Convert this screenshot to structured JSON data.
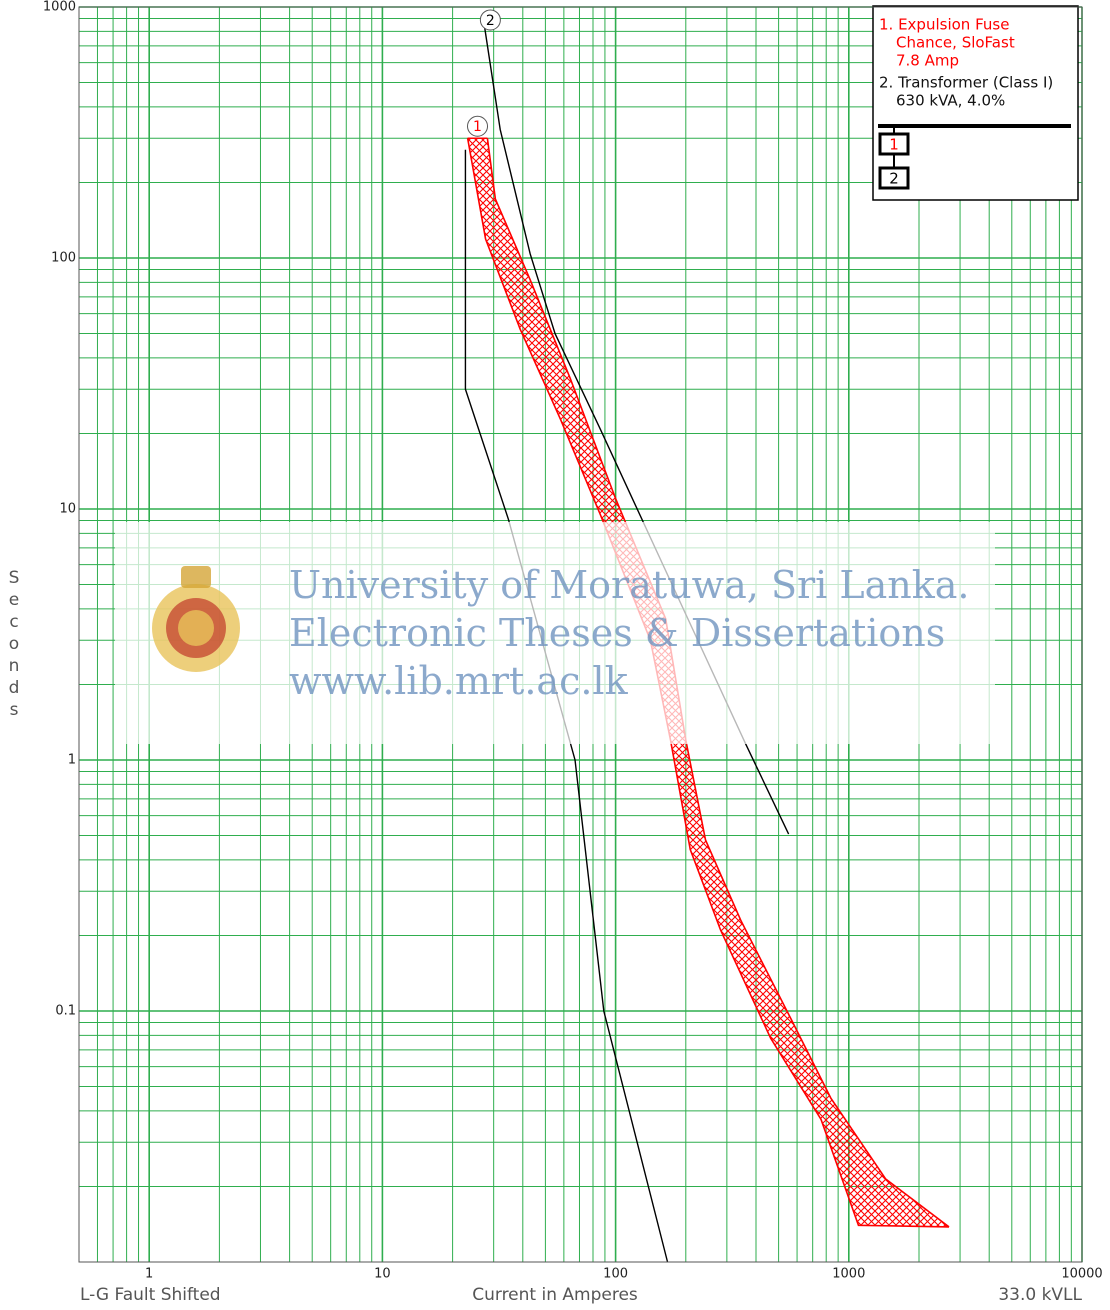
{
  "chart_data": {
    "type": "line",
    "xlabel": "Current in Amperes",
    "ylabel": "Seconds",
    "x_note_left": "L-G Fault Shifted",
    "x_note_right": "33.0 kVLL",
    "xscale": "log",
    "yscale": "log",
    "xlim": [
      0.5,
      10000
    ],
    "ylim": [
      0.01,
      1000
    ],
    "xticks": [
      1,
      10,
      100,
      1000,
      10000
    ],
    "yticks": [
      0.1,
      1,
      10,
      100,
      1000
    ],
    "xminorticks": [
      0.6,
      0.7,
      0.8,
      0.9,
      2,
      3,
      4,
      5,
      6,
      7,
      8,
      9,
      20,
      30,
      40,
      50,
      60,
      70,
      80,
      90,
      200,
      300,
      400,
      500,
      600,
      700,
      800,
      900,
      2000,
      3000,
      4000,
      5000,
      6000,
      7000,
      8000,
      9000
    ],
    "yminorticks": [
      0.02,
      0.03,
      0.04,
      0.05,
      0.06,
      0.07,
      0.08,
      0.09,
      0.2,
      0.3,
      0.4,
      0.5,
      0.6,
      0.7,
      0.8,
      0.9,
      2,
      3,
      4,
      5,
      6,
      7,
      8,
      9,
      20,
      30,
      40,
      50,
      60,
      70,
      80,
      90,
      200,
      300,
      400,
      500,
      600,
      700,
      800,
      900
    ],
    "grid": true,
    "grid_color": "#2fae4e",
    "bands": [
      {
        "label": "1",
        "color": "#ff0000",
        "lower": {
          "x": [
            23.2,
            27.7,
            39,
            58,
            86,
            141,
            172,
            209,
            282,
            462,
            760,
            1100,
            2690
          ],
          "values": [
            300,
            119,
            52,
            22.8,
            9.5,
            3.0,
            1.2,
            0.44,
            0.21,
            0.078,
            0.037,
            0.014,
            0.0138
          ]
        },
        "upper": {
          "x": [
            28.2,
            30.5,
            43,
            64,
            100,
            164,
            200,
            243,
            344,
            565,
            837,
            1440,
            2690
          ],
          "values": [
            300,
            172,
            82,
            33,
            11,
            3.65,
            1.2,
            0.48,
            0.23,
            0.093,
            0.045,
            0.0214,
            0.0138
          ]
        }
      }
    ],
    "lines": [
      {
        "label": "2",
        "color": "#000000",
        "x": [
          27.1,
          32,
          43,
          55,
          86,
          361,
          552
        ],
        "values": [
          896,
          325,
          104,
          50,
          20.8,
          1.16,
          0.507
        ]
      },
      {
        "color": "#000000",
        "x": [
          22.7,
          22.7,
          34.7,
          67,
          89,
          167
        ],
        "values": [
          270,
          30,
          9.1,
          1.0,
          0.1,
          0.01
        ]
      }
    ]
  },
  "legend": {
    "items": [
      {
        "lines": [
          "1. Expulsion Fuse",
          "Chance, SloFast",
          "7.8 Amp"
        ],
        "color": "#ff0000"
      },
      {
        "lines": [
          "2. Transformer (Class I)",
          "630 kVA, 4.0%"
        ],
        "color": "#000000"
      }
    ],
    "diagram": [
      "1",
      "2"
    ]
  },
  "watermark": [
    "University of Moratuwa, Sri Lanka.",
    "Electronic Theses & Dissertations",
    "www.lib.mrt.ac.lk"
  ]
}
